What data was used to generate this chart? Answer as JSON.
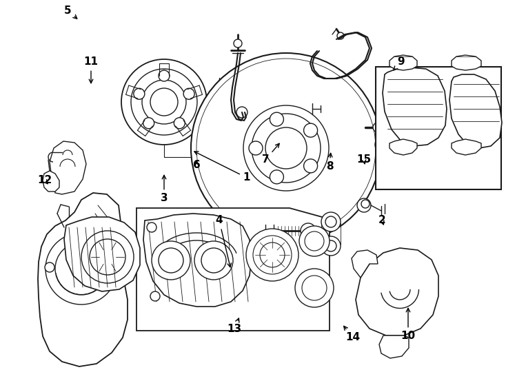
{
  "bg_color": "#ffffff",
  "line_color": "#1a1a1a",
  "lw": 1.0,
  "fig_w": 7.34,
  "fig_h": 5.4,
  "dpi": 100,
  "xmax": 734,
  "ymax": 540
}
